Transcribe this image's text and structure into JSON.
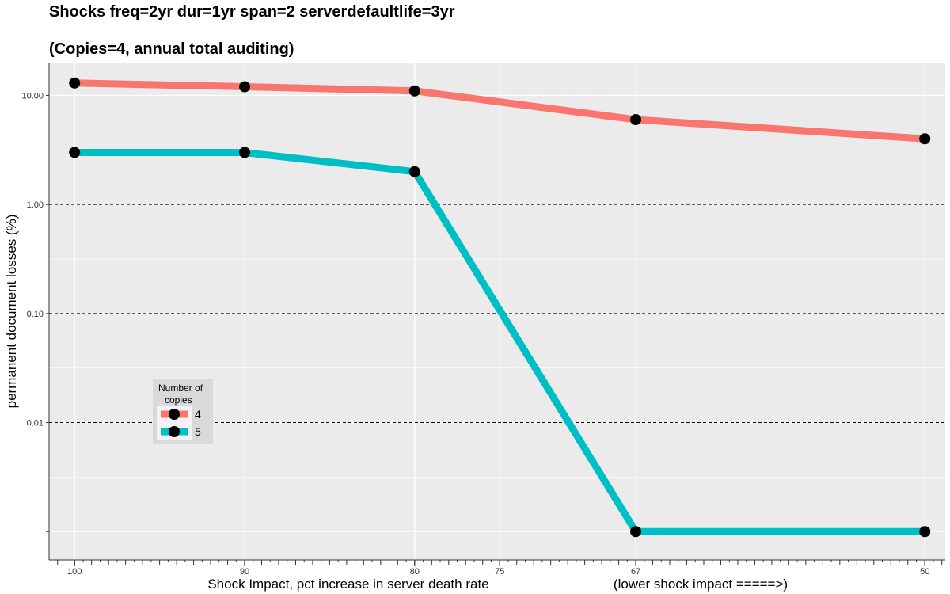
{
  "title_line1": "Shocks freq=2yr dur=1yr span=2 serverdefaultlife=3yr",
  "title_line2": "(Copies=4, annual total auditing)",
  "chart_data": {
    "type": "line",
    "xlabel": "Shock Impact, pct increase in server death rate",
    "xlabel_note": "(lower shock impact =====>)",
    "ylabel": "permanent document losses (%)",
    "y_scale": "log",
    "x_reversed": true,
    "xlim": [
      101.5,
      48.8
    ],
    "ylim": [
      0.00055,
      20
    ],
    "x_ticks": [
      100,
      90,
      80,
      75,
      67,
      50
    ],
    "y_ticks": [
      {
        "value": 10,
        "label": "10.00"
      },
      {
        "value": 1,
        "label": "1.00"
      },
      {
        "value": 0.1,
        "label": "0.10"
      },
      {
        "value": 0.01,
        "label": "0.01"
      },
      {
        "value": 0.001,
        "label": ""
      }
    ],
    "reference_lines": [
      1,
      0.1,
      0.01
    ],
    "legend": {
      "title_line1": "Number of",
      "title_line2": "copies",
      "placement": "inside-left"
    },
    "series": [
      {
        "name": "4",
        "color": "#F8766D",
        "points": [
          [
            100,
            13
          ],
          [
            90,
            12
          ],
          [
            80,
            11
          ],
          [
            67,
            6
          ],
          [
            50,
            4
          ]
        ]
      },
      {
        "name": "5",
        "color": "#00BFC4",
        "points": [
          [
            100,
            3
          ],
          [
            90,
            3
          ],
          [
            80,
            2
          ],
          [
            67,
            0.001
          ],
          [
            50,
            0.001
          ]
        ]
      }
    ],
    "grid": true
  }
}
